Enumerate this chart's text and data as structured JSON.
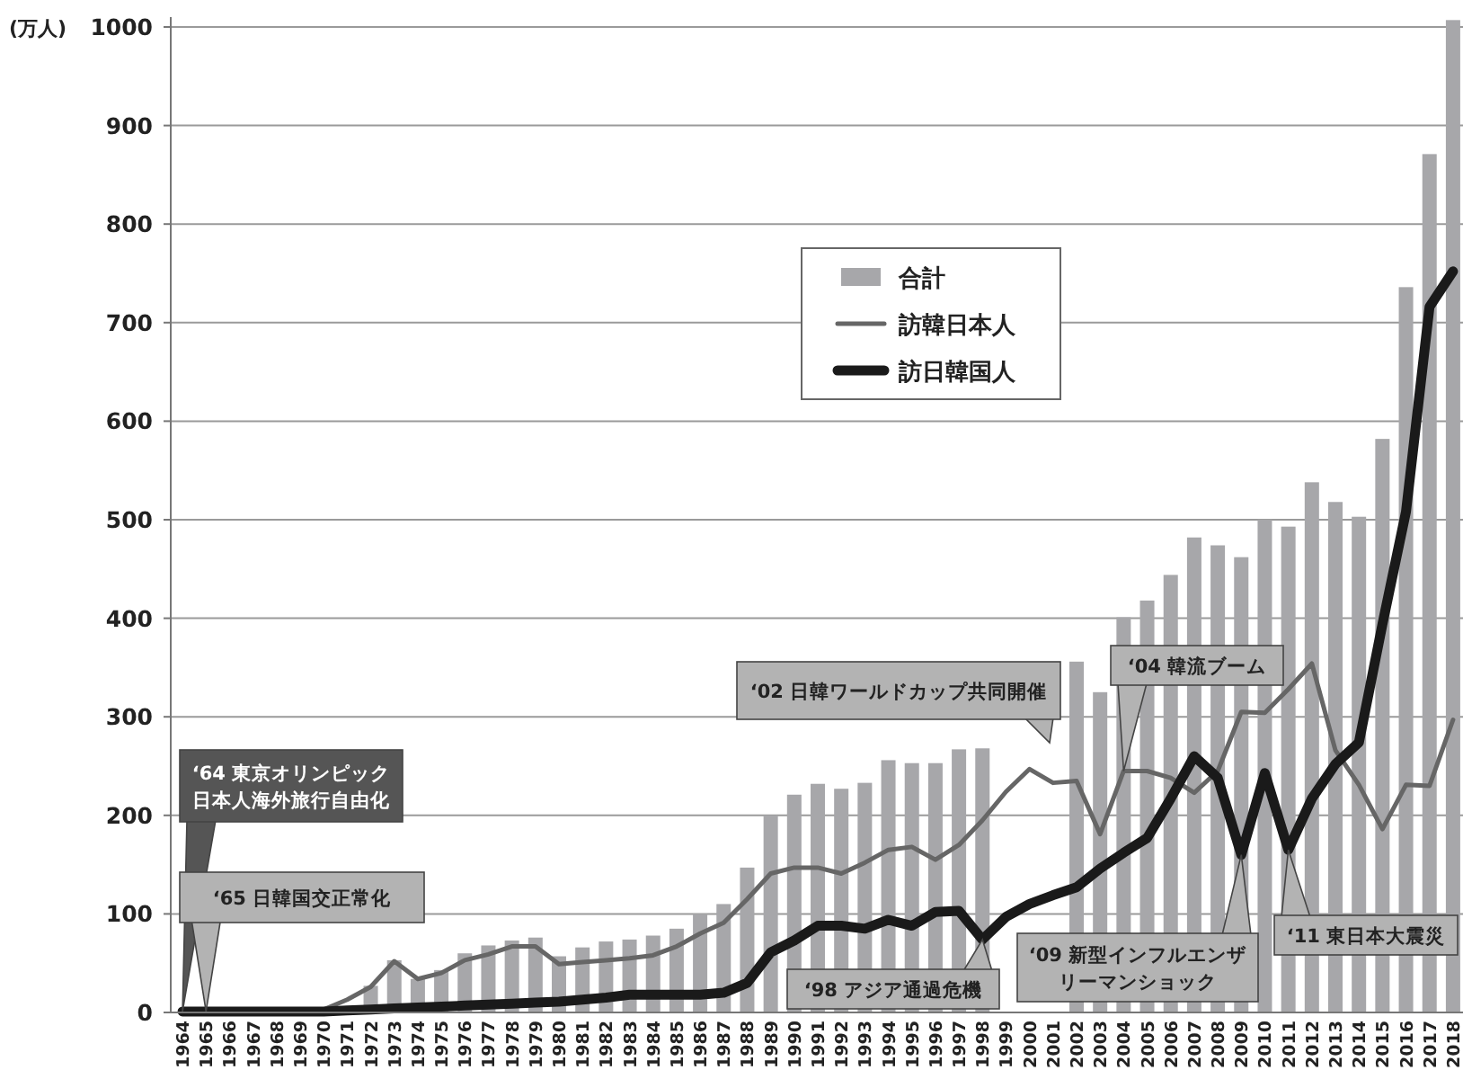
{
  "chart_data": {
    "type": "bar",
    "ylabel": "(万人)",
    "categories": [
      "1964",
      "1965",
      "1966",
      "1967",
      "1968",
      "1969",
      "1970",
      "1971",
      "1972",
      "1973",
      "1974",
      "1975",
      "1976",
      "1977",
      "1978",
      "1979",
      "1980",
      "1981",
      "1982",
      "1983",
      "1984",
      "1985",
      "1986",
      "1987",
      "1988",
      "1989",
      "1990",
      "1991",
      "1992",
      "1993",
      "1994",
      "1995",
      "1996",
      "1997",
      "1998",
      "1999",
      "2000",
      "2001",
      "2002",
      "2003",
      "2004",
      "2005",
      "2006",
      "2007",
      "2008",
      "2009",
      "2010",
      "2011",
      "2012",
      "2013",
      "2014",
      "2015",
      "2016",
      "2017",
      "2018"
    ],
    "series": [
      {
        "name": "合計",
        "color": "#a7a7aa",
        "values": [
          null,
          null,
          null,
          null,
          null,
          null,
          null,
          null,
          27,
          53,
          34,
          43,
          60,
          68,
          73,
          76,
          57,
          66,
          72,
          74,
          78,
          85,
          100,
          110,
          147,
          200,
          221,
          232,
          227,
          233,
          256,
          253,
          253,
          267,
          268,
          null,
          null,
          null,
          356,
          325,
          401,
          418,
          444,
          482,
          474,
          462,
          500,
          493,
          538,
          518,
          503,
          582,
          736,
          871,
          1007
        ]
      },
      {
        "name": "訪韓日本人",
        "type": "line",
        "color": "#666666",
        "values": [
          1,
          1,
          1,
          1,
          1,
          1,
          3,
          13,
          26,
          52,
          34,
          40,
          53,
          59,
          67,
          67,
          49,
          51,
          53,
          55,
          58,
          67,
          80,
          91,
          115,
          141,
          147,
          147,
          141,
          152,
          165,
          168,
          155,
          170,
          195,
          224,
          247,
          233,
          235,
          181,
          245,
          245,
          238,
          223,
          245,
          305,
          304,
          328,
          354,
          266,
          231,
          186,
          231,
          230,
          297
        ]
      },
      {
        "name": "訪日韓国人",
        "type": "line",
        "color": "#1a1a1a",
        "values": [
          1,
          1,
          1,
          1,
          1,
          1,
          1,
          2,
          3,
          4,
          5,
          6,
          7,
          8,
          9,
          10,
          11,
          13,
          15,
          18,
          18,
          18,
          18,
          20,
          30,
          61,
          73,
          88,
          88,
          85,
          94,
          88,
          102,
          103,
          74,
          97,
          110,
          119,
          127,
          146,
          162,
          177,
          217,
          260,
          238,
          160,
          243,
          165,
          217,
          252,
          274,
          394,
          508,
          716,
          752
        ]
      }
    ],
    "ylim": [
      0,
      1010
    ],
    "yticks": [
      0,
      100,
      200,
      300,
      400,
      500,
      600,
      700,
      800,
      900,
      1000
    ],
    "grid": "y",
    "legend": "top",
    "annotations": [
      {
        "text": "‘64 東京オリンピック日本人海外旅行自由化",
        "x": "1964",
        "y": 1
      },
      {
        "text": "‘65 日韓国交正常化",
        "x": "1965",
        "y": 1
      },
      {
        "text": "‘98 アジア通過危機",
        "x": "1998",
        "y": 74
      },
      "‘02 日韓ワールドカップ共同開催",
      {
        "text": "‘04 韓流ブーム",
        "x": "2004",
        "y": 245
      },
      {
        "text": "‘09 新型インフルエンザリーマンショック",
        "x": "2009",
        "y": 160
      },
      {
        "text": "‘11 東日本大震災",
        "x": "2011",
        "y": 165
      }
    ]
  }
}
